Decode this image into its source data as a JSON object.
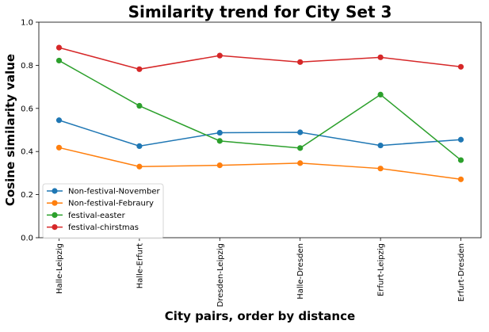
{
  "chart_data": {
    "type": "line",
    "title": "Similarity trend for City Set 3",
    "xlabel": "City pairs, order by distance",
    "ylabel": "Cosine similarity value",
    "categories": [
      "Halle-Leipzig",
      "Halle-Erfurt",
      "Dresden-Leipzig",
      "Halle-Dresden",
      "Erfurt-Leipzig",
      "Erfurt-Dresden"
    ],
    "ylim": [
      0.0,
      1.0
    ],
    "yticks": [
      "0.0",
      "0.2",
      "0.4",
      "0.6",
      "0.8",
      "1.0"
    ],
    "grid": false,
    "legend_position": "lower-left",
    "series": [
      {
        "name": "Non-festival-November",
        "color": "#1f77b4",
        "values": [
          0.545,
          0.425,
          0.487,
          0.489,
          0.428,
          0.455
        ]
      },
      {
        "name": "Non-festival-Febraury",
        "color": "#ff7f0e",
        "values": [
          0.418,
          0.33,
          0.336,
          0.346,
          0.321,
          0.271
        ]
      },
      {
        "name": "festival-easter",
        "color": "#2ca02c",
        "values": [
          0.822,
          0.612,
          0.449,
          0.416,
          0.664,
          0.36
        ]
      },
      {
        "name": "festival-chirstmas",
        "color": "#d62728",
        "values": [
          0.882,
          0.782,
          0.845,
          0.815,
          0.837,
          0.793
        ]
      }
    ]
  }
}
